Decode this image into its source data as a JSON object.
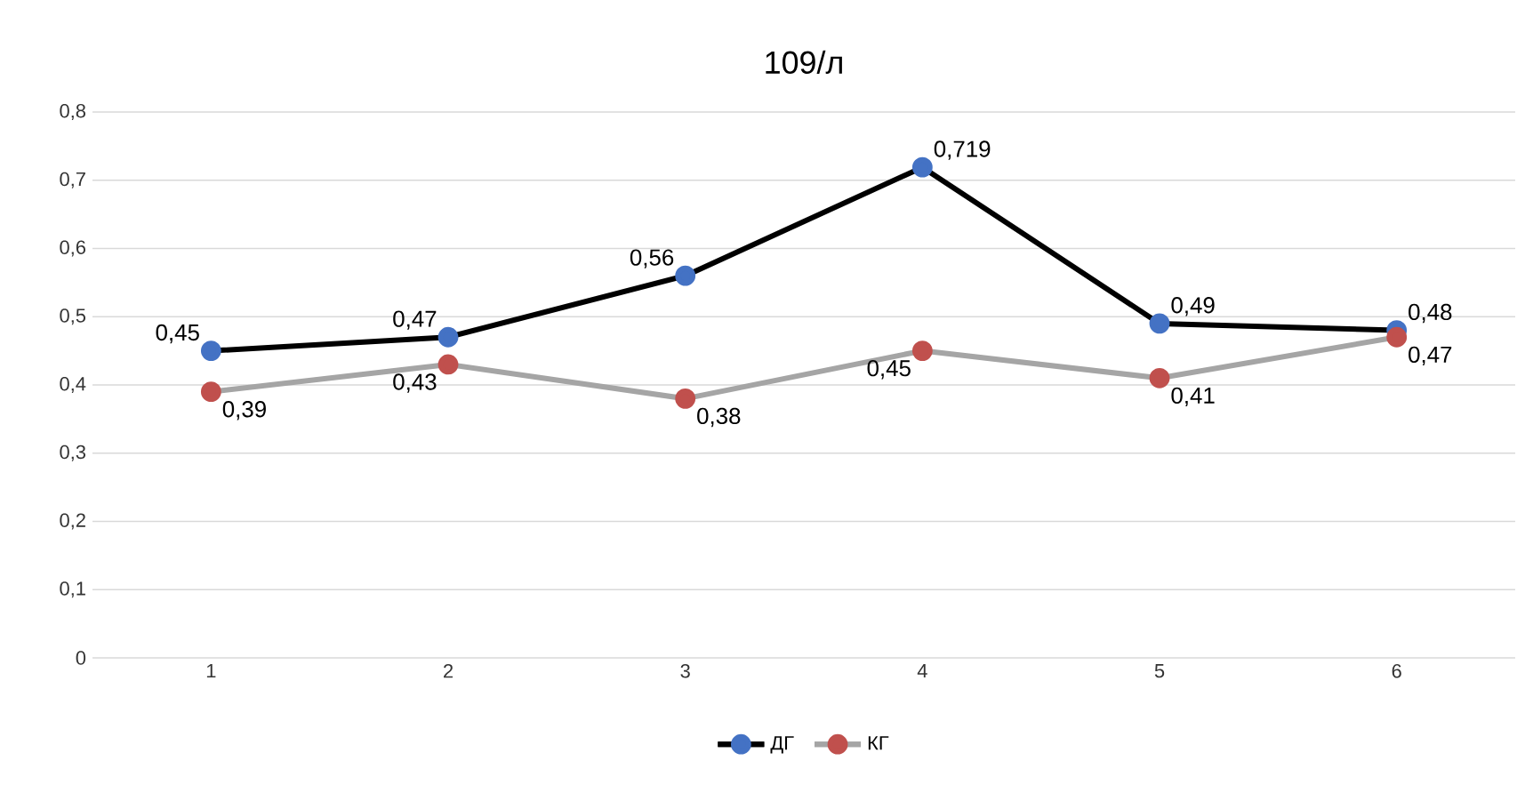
{
  "chart_data": {
    "type": "line",
    "title": "109/л",
    "categories": [
      "1",
      "2",
      "3",
      "4",
      "5",
      "6"
    ],
    "ylim": [
      0,
      0.8
    ],
    "yticks": [
      {
        "value": 0,
        "label": "0"
      },
      {
        "value": 0.1,
        "label": "0,1"
      },
      {
        "value": 0.2,
        "label": "0,2"
      },
      {
        "value": 0.3,
        "label": "0,3"
      },
      {
        "value": 0.4,
        "label": "0,4"
      },
      {
        "value": 0.5,
        "label": "0,5"
      },
      {
        "value": 0.6,
        "label": "0,6"
      },
      {
        "value": 0.7,
        "label": "0,7"
      },
      {
        "value": 0.8,
        "label": "0,8"
      }
    ],
    "grid": "y",
    "legend": "bottom",
    "marker": "circle",
    "line_style": "solid",
    "series": [
      {
        "name": "ДГ",
        "color": "#000000",
        "colors": [
          "#4472c4",
          "#4472c4",
          "#4472c4",
          "#4472c4",
          "#4472c4",
          "#4472c4"
        ],
        "values": [
          0.45,
          0.47,
          0.56,
          0.719,
          0.49,
          0.48
        ],
        "value_labels": [
          "0,45",
          "0,47",
          "0,56",
          "0,719",
          "0,49",
          "0,48"
        ]
      },
      {
        "name": "КГ",
        "color": "#a5a5a5",
        "colors": [
          "#c0504d",
          "#c0504d",
          "#c0504d",
          "#c0504d",
          "#c0504d",
          "#c0504d"
        ],
        "values": [
          0.39,
          0.43,
          0.38,
          0.45,
          0.41,
          0.47
        ],
        "value_labels": [
          "0,39",
          "0,43",
          "0,38",
          "0,45",
          "0,41",
          "0,47"
        ]
      }
    ]
  }
}
